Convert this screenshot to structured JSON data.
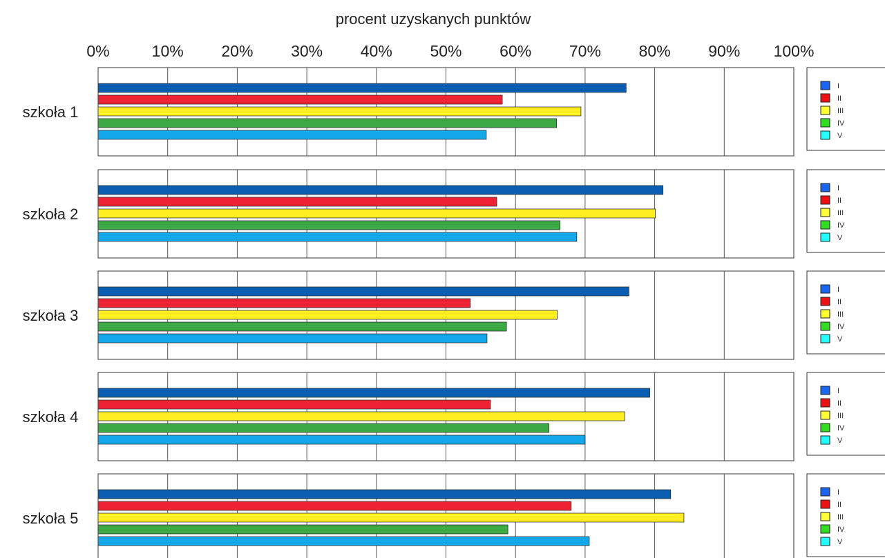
{
  "chart_data": {
    "type": "bar",
    "orientation": "horizontal",
    "xlabel": "procent uzyskanych punktów",
    "xlim": [
      0,
      100
    ],
    "ticks": [
      "0%",
      "10%",
      "20%",
      "30%",
      "40%",
      "50%",
      "60%",
      "70%",
      "80%",
      "90%",
      "100%"
    ],
    "grid": true,
    "legend_placement": "right",
    "legend_entries": [
      "I",
      "II",
      "III",
      "IV",
      "V"
    ],
    "series_colors": [
      "#0a5db0",
      "#ee2233",
      "#ffee22",
      "#3caa44",
      "#12a8ea"
    ],
    "legend_colors": [
      "#1a66ee",
      "#ee1111",
      "#ffff33",
      "#33dd22",
      "#22ffff"
    ],
    "panels": [
      {
        "label": "szkoła 1",
        "values": [
          75.9,
          58.1,
          69.4,
          65.9,
          55.8
        ]
      },
      {
        "label": "szkoła 2",
        "values": [
          81.2,
          57.3,
          80.1,
          66.4,
          68.8
        ]
      },
      {
        "label": "szkoła 3",
        "values": [
          76.3,
          53.5,
          66.0,
          58.7,
          55.9
        ]
      },
      {
        "label": "szkoła 4",
        "values": [
          79.3,
          56.4,
          75.7,
          64.8,
          70.0
        ]
      },
      {
        "label": "szkoła 5",
        "values": [
          82.3,
          68.0,
          84.2,
          58.9,
          70.6
        ]
      }
    ]
  }
}
